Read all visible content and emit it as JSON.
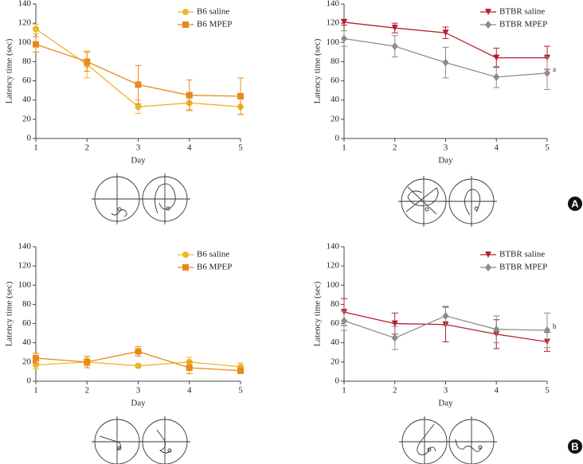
{
  "chart_data": [
    {
      "type": "line",
      "xlabel": "Day",
      "ylabel": "Latency time (sec)",
      "x": [
        1,
        2,
        3,
        4,
        5
      ],
      "xlim": [
        1,
        5
      ],
      "xticks": [
        1,
        2,
        3,
        4,
        5
      ],
      "ylim": [
        0,
        140
      ],
      "yticks": [
        0,
        20,
        40,
        60,
        80,
        100,
        120,
        140
      ],
      "legend": "upper right",
      "series": [
        {
          "name": "B6 saline",
          "color": "#f0b429",
          "marker": "circle",
          "values": [
            114,
            77,
            33,
            37,
            33
          ],
          "errors": [
            5,
            14,
            7,
            7,
            8
          ]
        },
        {
          "name": "B6 MPEP",
          "color": "#e8891a",
          "marker": "square",
          "values": [
            98,
            80,
            56,
            45,
            44
          ],
          "errors": [
            8,
            10,
            20,
            16,
            19
          ]
        }
      ]
    },
    {
      "type": "line",
      "xlabel": "Day",
      "ylabel": "Latency time (sec)",
      "x": [
        1,
        2,
        3,
        4,
        5
      ],
      "xlim": [
        1,
        5
      ],
      "xticks": [
        1,
        2,
        3,
        4,
        5
      ],
      "ylim": [
        0,
        140
      ],
      "yticks": [
        0,
        20,
        40,
        60,
        80,
        100,
        120,
        140
      ],
      "legend": "upper right",
      "annotation": "a",
      "series": [
        {
          "name": "BTBR saline",
          "color": "#b5202e",
          "marker": "triangle-down",
          "values": [
            121,
            115,
            110,
            84,
            84
          ],
          "errors": [
            3,
            5,
            6,
            10,
            12
          ]
        },
        {
          "name": "BTBR MPEP",
          "color": "#8c8c8c",
          "marker": "diamond",
          "values": [
            104,
            96,
            79,
            64,
            68
          ],
          "errors": [
            8,
            11,
            16,
            11,
            17
          ]
        }
      ]
    },
    {
      "type": "line",
      "xlabel": "Day",
      "ylabel": "Latency time (sec)",
      "x": [
        1,
        2,
        3,
        4,
        5
      ],
      "xlim": [
        1,
        5
      ],
      "xticks": [
        1,
        2,
        3,
        4,
        5
      ],
      "ylim": [
        0,
        140
      ],
      "yticks": [
        0,
        20,
        40,
        60,
        80,
        100,
        120,
        140
      ],
      "legend": "upper right",
      "series": [
        {
          "name": "B6 saline",
          "color": "#f0b429",
          "marker": "circle",
          "values": [
            17,
            20,
            16,
            20,
            15
          ],
          "errors": [
            4,
            4,
            2,
            5,
            4
          ]
        },
        {
          "name": "B6 MPEP",
          "color": "#e8891a",
          "marker": "square",
          "values": [
            24,
            20,
            31,
            14,
            11
          ],
          "errors": [
            5,
            6,
            5,
            6,
            3
          ]
        }
      ]
    },
    {
      "type": "line",
      "xlabel": "Day",
      "ylabel": "Latency time (sec)",
      "x": [
        1,
        2,
        3,
        4,
        5
      ],
      "xlim": [
        1,
        5
      ],
      "xticks": [
        1,
        2,
        3,
        4,
        5
      ],
      "ylim": [
        0,
        140
      ],
      "yticks": [
        0,
        20,
        40,
        60,
        80,
        100,
        120,
        140
      ],
      "legend": "upper right",
      "annotation": "b",
      "series": [
        {
          "name": "BTBR saline",
          "color": "#b5202e",
          "marker": "triangle-down",
          "values": [
            72,
            60,
            59,
            49,
            41
          ],
          "errors": [
            14,
            11,
            18,
            15,
            10
          ]
        },
        {
          "name": "BTBR MPEP",
          "color": "#8c8c8c",
          "marker": "diamond",
          "values": [
            63,
            45,
            68,
            54,
            53
          ],
          "errors": [
            10,
            12,
            10,
            14,
            18
          ]
        }
      ]
    }
  ],
  "panel_labels": [
    "A",
    "B"
  ]
}
